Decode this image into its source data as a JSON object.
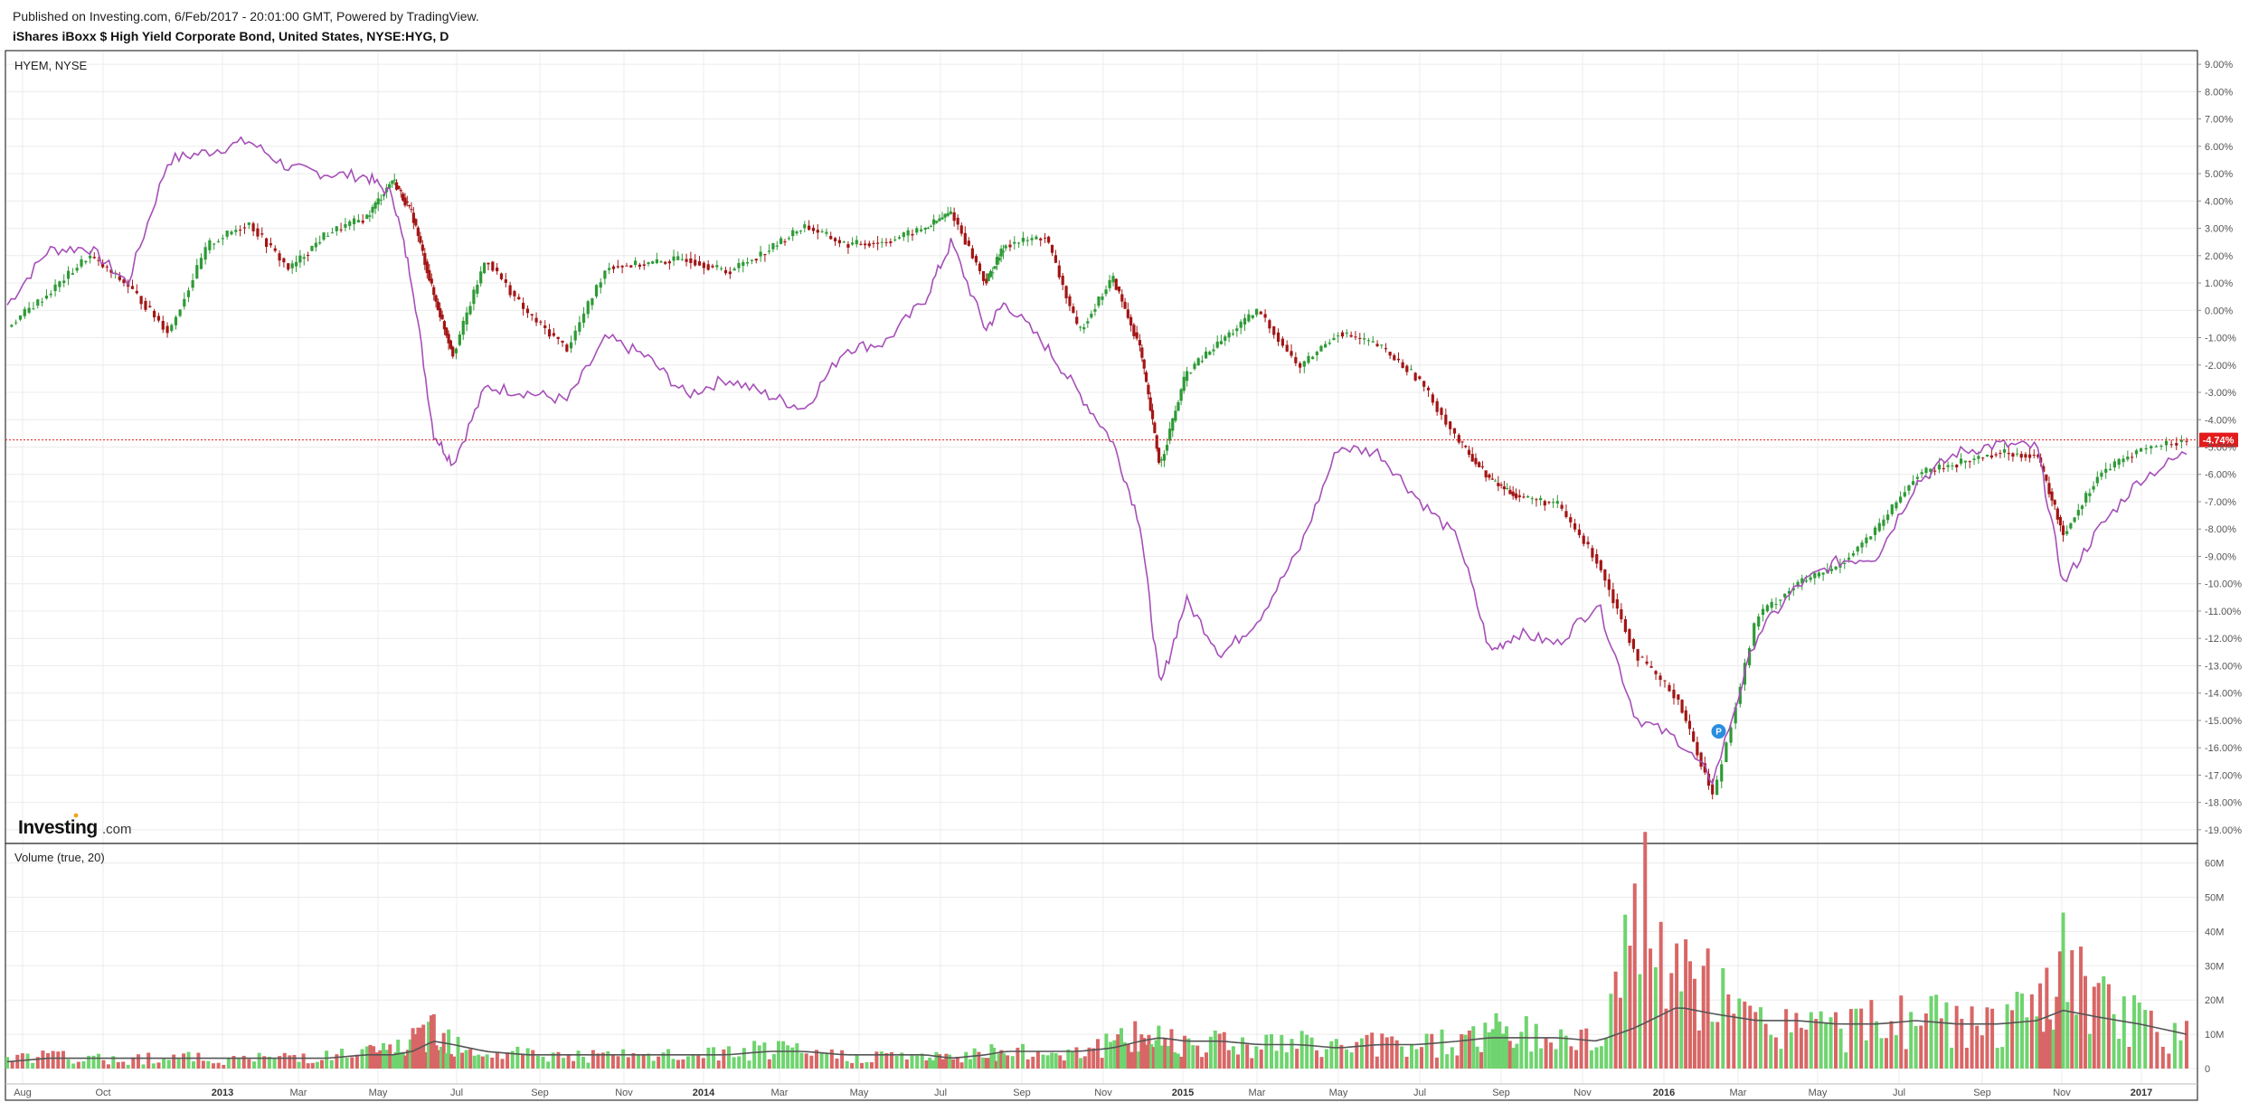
{
  "header": {
    "published": "Published on Investing.com, 6/Feb/2017 - 20:01:00 GMT, Powered by TradingView.",
    "title": "iShares iBoxx $ High Yield Corporate Bond, United States, NYSE:HYG, D"
  },
  "colors": {
    "up": "#2e9a36",
    "down": "#a31515",
    "compare_line": "#a64fb8",
    "vol_up": "#6fd46f",
    "vol_down": "#d96666",
    "vol_ma": "#555555",
    "last_price_line": "#e31b1b",
    "grid": "#ececec",
    "badge": "#2a8de0"
  },
  "main_pane": {
    "comparison_label": "HYEM, NYSE",
    "last_value_tag": "-4.74%",
    "marker_label": "P",
    "y_ticks": [
      "9.00%",
      "8.00%",
      "7.00%",
      "6.00%",
      "5.00%",
      "4.00%",
      "3.00%",
      "2.00%",
      "1.00%",
      "0.00%",
      "-1.00%",
      "-2.00%",
      "-3.00%",
      "-4.00%",
      "-5.00%",
      "-6.00%",
      "-7.00%",
      "-8.00%",
      "-9.00%",
      "-10.00%",
      "-11.00%",
      "-12.00%",
      "-13.00%",
      "-14.00%",
      "-15.00%",
      "-16.00%",
      "-17.00%",
      "-18.00%",
      "-19.00%"
    ]
  },
  "volume_pane": {
    "label": "Volume (true, 20)",
    "y_ticks": [
      "60M",
      "50M",
      "40M",
      "30M",
      "20M",
      "10M",
      "0"
    ]
  },
  "logo": {
    "name": "Investing",
    "suffix": ".com"
  },
  "x_axis": {
    "labels": [
      {
        "text": "Aug",
        "bold": false
      },
      {
        "text": "Oct",
        "bold": false
      },
      {
        "text": "2013",
        "bold": true
      },
      {
        "text": "Mar",
        "bold": false
      },
      {
        "text": "May",
        "bold": false
      },
      {
        "text": "Jul",
        "bold": false
      },
      {
        "text": "Sep",
        "bold": false
      },
      {
        "text": "Nov",
        "bold": false
      },
      {
        "text": "2014",
        "bold": true
      },
      {
        "text": "Mar",
        "bold": false
      },
      {
        "text": "May",
        "bold": false
      },
      {
        "text": "Jul",
        "bold": false
      },
      {
        "text": "Sep",
        "bold": false
      },
      {
        "text": "Nov",
        "bold": false
      },
      {
        "text": "2015",
        "bold": true
      },
      {
        "text": "Mar",
        "bold": false
      },
      {
        "text": "May",
        "bold": false
      },
      {
        "text": "Jul",
        "bold": false
      },
      {
        "text": "Sep",
        "bold": false
      },
      {
        "text": "Nov",
        "bold": false
      },
      {
        "text": "2016",
        "bold": true
      },
      {
        "text": "Mar",
        "bold": false
      },
      {
        "text": "May",
        "bold": false
      },
      {
        "text": "Jul",
        "bold": false
      },
      {
        "text": "Sep",
        "bold": false
      },
      {
        "text": "Nov",
        "bold": false
      },
      {
        "text": "2017",
        "bold": true
      }
    ]
  },
  "chart_data": {
    "type": "line",
    "title": "iShares iBoxx $ High Yield Corporate Bond, United States, NYSE:HYG, D",
    "y_unit": "% change",
    "ylim": [
      -19.5,
      9.5
    ],
    "volume_ylim": [
      0,
      62
    ],
    "grid": true,
    "x": [
      "2012-07-20",
      "2012-08-20",
      "2012-09-20",
      "2012-10-20",
      "2012-11-20",
      "2012-12-20",
      "2013-01-20",
      "2013-02-20",
      "2013-03-20",
      "2013-04-20",
      "2013-05-10",
      "2013-05-25",
      "2013-06-10",
      "2013-06-25",
      "2013-07-20",
      "2013-08-20",
      "2013-09-20",
      "2013-10-20",
      "2013-11-20",
      "2013-12-20",
      "2014-01-20",
      "2014-02-20",
      "2014-03-20",
      "2014-04-20",
      "2014-05-20",
      "2014-06-20",
      "2014-07-10",
      "2014-08-05",
      "2014-08-20",
      "2014-09-20",
      "2014-10-15",
      "2014-11-10",
      "2014-12-01",
      "2014-12-16",
      "2015-01-05",
      "2015-02-01",
      "2015-03-01",
      "2015-04-01",
      "2015-05-01",
      "2015-06-01",
      "2015-07-01",
      "2015-08-01",
      "2015-08-25",
      "2015-09-15",
      "2015-10-15",
      "2015-11-15",
      "2015-12-14",
      "2016-01-15",
      "2016-02-11",
      "2016-03-15",
      "2016-04-15",
      "2016-05-15",
      "2016-06-15",
      "2016-07-15",
      "2016-08-15",
      "2016-09-15",
      "2016-10-15",
      "2016-11-04",
      "2016-12-01",
      "2017-01-01",
      "2017-02-06"
    ],
    "series": [
      {
        "name": "NYSE:HYG",
        "values": [
          -0.6,
          0.6,
          2.0,
          0.9,
          -0.8,
          2.4,
          3.2,
          1.5,
          2.8,
          3.4,
          4.8,
          3.5,
          0.6,
          -1.6,
          1.9,
          -0.1,
          -1.4,
          1.6,
          1.7,
          1.9,
          1.4,
          2.2,
          3.1,
          2.4,
          2.5,
          3.0,
          3.6,
          1.0,
          2.4,
          2.7,
          -0.8,
          1.2,
          -1.4,
          -5.7,
          -2.3,
          -1.1,
          0.0,
          -2.1,
          -0.8,
          -1.3,
          -2.5,
          -4.8,
          -6.2,
          -6.8,
          -7.1,
          -9.2,
          -12.6,
          -14.2,
          -17.8,
          -11.2,
          -10.0,
          -9.4,
          -8.0,
          -6.0,
          -5.6,
          -5.2,
          -5.3,
          -8.2,
          -6.0,
          -5.1,
          -4.74
        ]
      },
      {
        "name": "HYEM, NYSE",
        "values": [
          0.2,
          2.2,
          2.3,
          1.0,
          5.5,
          5.8,
          6.2,
          5.2,
          5.0,
          4.9,
          4.2,
          1.0,
          -4.5,
          -5.6,
          -2.8,
          -3.0,
          -3.3,
          -1.0,
          -1.7,
          -3.1,
          -2.5,
          -3.1,
          -3.6,
          -1.4,
          -1.2,
          0.4,
          2.5,
          -0.7,
          0.3,
          -1.3,
          -3.0,
          -4.8,
          -7.8,
          -13.8,
          -10.6,
          -12.6,
          -11.3,
          -8.8,
          -5.0,
          -5.2,
          -6.9,
          -8.4,
          -12.5,
          -11.8,
          -12.2,
          -10.7,
          -14.9,
          -15.7,
          -17.2,
          -11.9,
          -10.1,
          -9.2,
          -9.0,
          -6.3,
          -5.2,
          -4.9,
          -5.0,
          -10.0,
          -8.0,
          -6.2,
          -5.2
        ]
      }
    ],
    "volume": {
      "unit": "M",
      "values_approx": [
        3,
        4,
        3,
        3,
        4,
        3,
        3,
        4,
        4,
        5,
        6,
        8,
        14,
        9,
        5,
        5,
        4,
        4,
        4,
        4,
        5,
        6,
        5,
        4,
        4,
        4,
        3,
        6,
        5,
        5,
        6,
        8,
        10,
        10,
        9,
        9,
        8,
        8,
        7,
        8,
        8,
        9,
        12,
        11,
        10,
        9,
        54,
        28,
        24,
        14,
        15,
        13,
        14,
        17,
        14,
        15,
        16,
        32,
        20,
        14,
        11
      ],
      "ma_values": [
        2,
        3,
        3,
        3,
        3,
        3,
        3,
        3,
        3,
        4,
        4,
        5,
        8,
        7,
        5,
        4,
        4,
        4,
        4,
        4,
        4,
        5,
        5,
        4,
        4,
        4,
        3,
        4,
        5,
        5,
        5,
        6,
        8,
        9,
        8,
        8,
        7,
        7,
        6,
        7,
        7,
        8,
        9,
        9,
        9,
        8,
        12,
        18,
        16,
        14,
        14,
        13,
        13,
        14,
        13,
        13,
        14,
        17,
        15,
        13,
        10
      ]
    }
  }
}
